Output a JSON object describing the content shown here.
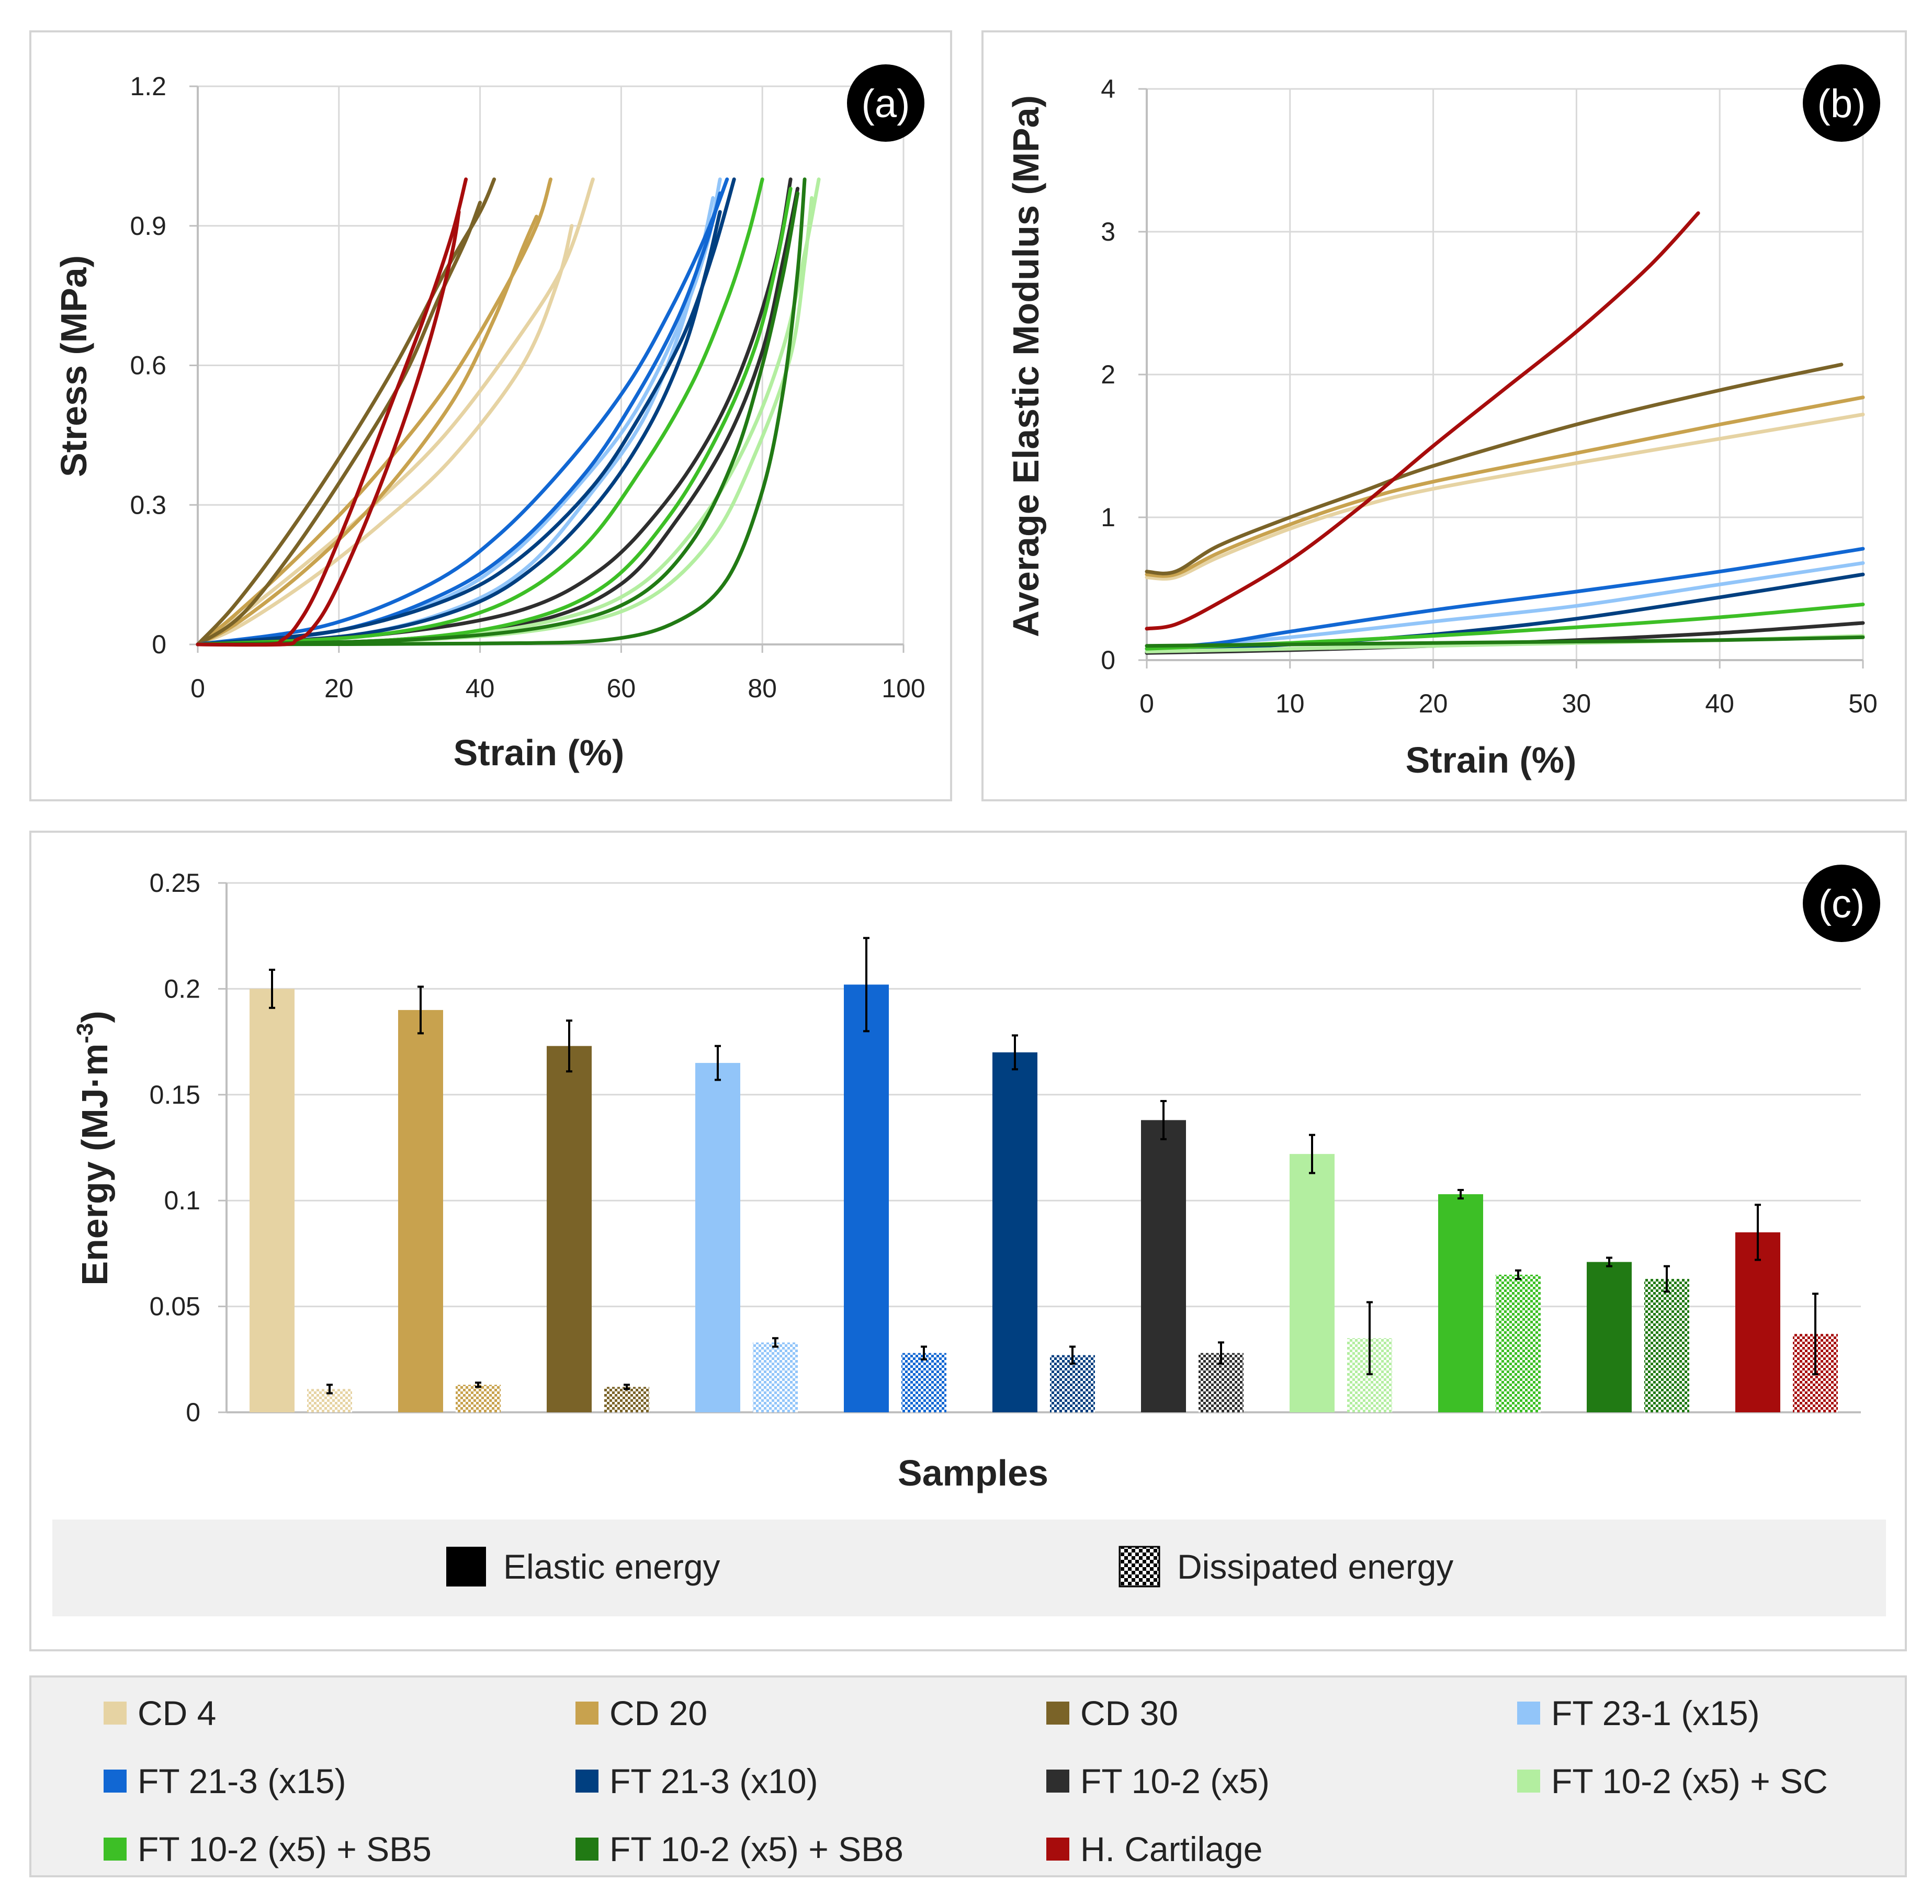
{
  "chart_data": [
    {
      "panel": "a",
      "panel_label": "(a)",
      "type": "line",
      "xlabel": "Strain (%)",
      "ylabel": "Stress (MPa)",
      "xlim": [
        0,
        100
      ],
      "ylim": [
        0,
        1.2
      ],
      "xticks": [
        "0",
        "20",
        "40",
        "60",
        "80",
        "100"
      ],
      "yticks": [
        "0",
        "0.3",
        "0.6",
        "0.9",
        "1.2"
      ],
      "grid": true,
      "series": [
        {
          "name": "CD 4",
          "color": "#e6d3a3",
          "curves": [
            {
              "x": [
                0,
                5,
                15,
                25,
                35,
                45,
                52,
                56
              ],
              "y": [
                0,
                0.05,
                0.17,
                0.3,
                0.45,
                0.65,
                0.82,
                1.0
              ]
            },
            {
              "x": [
                0,
                6,
                16,
                26,
                36,
                46,
                51,
                53
              ],
              "y": [
                0,
                0.04,
                0.14,
                0.26,
                0.4,
                0.6,
                0.78,
                0.9
              ]
            }
          ]
        },
        {
          "name": "CD 20",
          "color": "#c8a24e",
          "curves": [
            {
              "x": [
                0,
                5,
                15,
                25,
                35,
                43,
                48,
                50
              ],
              "y": [
                0,
                0.06,
                0.2,
                0.36,
                0.55,
                0.75,
                0.9,
                1.0
              ]
            },
            {
              "x": [
                0,
                6,
                16,
                26,
                36,
                42,
                46,
                48
              ],
              "y": [
                0,
                0.05,
                0.17,
                0.32,
                0.52,
                0.7,
                0.85,
                0.92
              ]
            }
          ]
        },
        {
          "name": "CD 30",
          "color": "#7a6328",
          "curves": [
            {
              "x": [
                0,
                5,
                12,
                20,
                28,
                35,
                40,
                42
              ],
              "y": [
                0,
                0.08,
                0.22,
                0.4,
                0.6,
                0.8,
                0.93,
                1.0
              ]
            },
            {
              "x": [
                0,
                6,
                13,
                21,
                29,
                34,
                38,
                40
              ],
              "y": [
                0,
                0.06,
                0.19,
                0.37,
                0.57,
                0.74,
                0.87,
                0.95
              ]
            }
          ]
        },
        {
          "name": "FT 23-1 (x15)",
          "color": "#92c5f9",
          "curves": [
            {
              "x": [
                0,
                20,
                35,
                45,
                55,
                62,
                68,
                72,
                74
              ],
              "y": [
                0,
                0.03,
                0.1,
                0.2,
                0.36,
                0.5,
                0.68,
                0.85,
                1.0
              ]
            },
            {
              "x": [
                0,
                22,
                37,
                47,
                56,
                63,
                68,
                71,
                73
              ],
              "y": [
                0,
                0.02,
                0.08,
                0.17,
                0.33,
                0.48,
                0.66,
                0.82,
                0.96
              ]
            }
          ]
        },
        {
          "name": "FT 21-3 (x15)",
          "color": "#1167d3",
          "curves": [
            {
              "x": [
                0,
                18,
                33,
                43,
                53,
                61,
                67,
                72,
                75
              ],
              "y": [
                0,
                0.04,
                0.13,
                0.24,
                0.4,
                0.56,
                0.72,
                0.88,
                1.0
              ]
            },
            {
              "x": [
                0,
                20,
                35,
                45,
                55,
                62,
                68,
                72,
                74
              ],
              "y": [
                0,
                0.03,
                0.11,
                0.21,
                0.37,
                0.53,
                0.7,
                0.86,
                0.97
              ]
            }
          ]
        },
        {
          "name": "FT 21-3 (x10)",
          "color": "#003f80",
          "curves": [
            {
              "x": [
                0,
                20,
                36,
                46,
                56,
                63,
                69,
                73,
                76
              ],
              "y": [
                0,
                0.03,
                0.1,
                0.19,
                0.34,
                0.5,
                0.67,
                0.84,
                1.0
              ]
            },
            {
              "x": [
                0,
                22,
                38,
                48,
                57,
                64,
                69,
                72,
                74
              ],
              "y": [
                0,
                0.02,
                0.08,
                0.17,
                0.31,
                0.47,
                0.64,
                0.8,
                0.93
              ]
            }
          ]
        },
        {
          "name": "FT 10-2 (x5)",
          "color": "#2e2e2e",
          "curves": [
            {
              "x": [
                0,
                25,
                45,
                57,
                66,
                73,
                78,
                82,
                84
              ],
              "y": [
                0,
                0.02,
                0.07,
                0.16,
                0.3,
                0.46,
                0.63,
                0.83,
                1.0
              ]
            },
            {
              "x": [
                0,
                28,
                48,
                60,
                68,
                75,
                80,
                83,
                85
              ],
              "y": [
                0,
                0.01,
                0.05,
                0.13,
                0.27,
                0.44,
                0.63,
                0.83,
                0.98
              ]
            }
          ]
        },
        {
          "name": "FT 10-2 (x5) + SC",
          "color": "#b3eea0",
          "curves": [
            {
              "x": [
                0,
                30,
                50,
                62,
                71,
                78,
                83,
                86,
                88
              ],
              "y": [
                0,
                0.01,
                0.05,
                0.12,
                0.26,
                0.44,
                0.64,
                0.84,
                1.0
              ]
            },
            {
              "x": [
                0,
                32,
                52,
                64,
                73,
                79,
                84,
                86,
                87
              ],
              "y": [
                0,
                0.01,
                0.04,
                0.1,
                0.23,
                0.41,
                0.62,
                0.82,
                0.96
              ]
            }
          ]
        },
        {
          "name": "FT 10-2 (x5) + SB5",
          "color": "#3dbf26",
          "curves": [
            {
              "x": [
                0,
                25,
                42,
                54,
                63,
                70,
                75,
                78,
                80
              ],
              "y": [
                0,
                0.02,
                0.08,
                0.2,
                0.38,
                0.56,
                0.74,
                0.88,
                1.0
              ]
            },
            {
              "x": [
                0,
                28,
                46,
                58,
                67,
                74,
                79,
                82,
                84
              ],
              "y": [
                0,
                0.01,
                0.05,
                0.13,
                0.28,
                0.46,
                0.64,
                0.82,
                0.98
              ]
            }
          ]
        },
        {
          "name": "FT 10-2 (x5) + SB8",
          "color": "#217a14",
          "curves": [
            {
              "x": [
                0,
                40,
                58,
                68,
                75,
                80,
                83,
                85,
                86
              ],
              "y": [
                0,
                0.002,
                0.01,
                0.05,
                0.14,
                0.33,
                0.55,
                0.8,
                1.0
              ]
            },
            {
              "x": [
                0,
                30,
                50,
                62,
                70,
                76,
                80,
                83,
                85
              ],
              "y": [
                0,
                0.01,
                0.04,
                0.1,
                0.22,
                0.4,
                0.6,
                0.8,
                0.97
              ]
            }
          ]
        },
        {
          "name": "H. Cartilage",
          "color": "#a70c0c",
          "curves": [
            {
              "x": [
                0,
                10,
                12,
                14,
                17,
                22,
                27,
                32,
                36,
                38
              ],
              "y": [
                0,
                0,
                0.01,
                0.04,
                0.12,
                0.3,
                0.5,
                0.7,
                0.88,
                1.0
              ]
            },
            {
              "x": [
                0,
                12,
                14,
                16,
                19,
                24,
                29,
                33,
                36,
                37
              ],
              "y": [
                0,
                0,
                0.01,
                0.03,
                0.1,
                0.27,
                0.47,
                0.66,
                0.84,
                0.93
              ]
            }
          ]
        }
      ]
    },
    {
      "panel": "b",
      "panel_label": "(b)",
      "type": "line",
      "xlabel": "Strain (%)",
      "ylabel": "Average Elastic Modulus (MPa)",
      "xlim": [
        0,
        50
      ],
      "ylim": [
        0,
        4
      ],
      "xticks": [
        "0",
        "10",
        "20",
        "30",
        "40",
        "50"
      ],
      "yticks": [
        "0",
        "1",
        "2",
        "3",
        "4"
      ],
      "grid": true,
      "series": [
        {
          "name": "CD 4",
          "color": "#e6d3a3",
          "x": [
            0,
            2,
            5,
            10,
            15,
            20,
            30,
            40,
            50
          ],
          "y": [
            0.58,
            0.58,
            0.72,
            0.92,
            1.08,
            1.2,
            1.38,
            1.55,
            1.72
          ]
        },
        {
          "name": "CD 20",
          "color": "#c8a24e",
          "x": [
            0,
            2,
            5,
            10,
            15,
            20,
            30,
            40,
            50
          ],
          "y": [
            0.6,
            0.6,
            0.75,
            0.95,
            1.12,
            1.25,
            1.45,
            1.65,
            1.84
          ]
        },
        {
          "name": "CD 30",
          "color": "#7a6328",
          "x": [
            0,
            2,
            5,
            10,
            15,
            20,
            30,
            40,
            48.5
          ],
          "y": [
            0.62,
            0.62,
            0.8,
            1.0,
            1.18,
            1.36,
            1.65,
            1.89,
            2.07
          ]
        },
        {
          "name": "FT 23-1 (x15)",
          "color": "#92c5f9",
          "x": [
            0,
            10,
            20,
            30,
            40,
            50
          ],
          "y": [
            0.08,
            0.16,
            0.27,
            0.38,
            0.53,
            0.68
          ]
        },
        {
          "name": "FT 21-3 (x15)",
          "color": "#1167d3",
          "x": [
            0,
            5,
            10,
            20,
            30,
            40,
            50
          ],
          "y": [
            0.08,
            0.12,
            0.2,
            0.35,
            0.48,
            0.62,
            0.78
          ]
        },
        {
          "name": "FT 21-3 (x10)",
          "color": "#003f80",
          "x": [
            0,
            10,
            20,
            30,
            40,
            50
          ],
          "y": [
            0.06,
            0.11,
            0.18,
            0.29,
            0.44,
            0.6
          ]
        },
        {
          "name": "FT 10-2 (x5)",
          "color": "#2e2e2e",
          "x": [
            0,
            10,
            20,
            30,
            40,
            50
          ],
          "y": [
            0.05,
            0.07,
            0.1,
            0.14,
            0.19,
            0.26
          ]
        },
        {
          "name": "FT 10-2 (x5) + SC",
          "color": "#b3eea0",
          "x": [
            0,
            10,
            20,
            30,
            40,
            50
          ],
          "y": [
            0.06,
            0.08,
            0.1,
            0.12,
            0.14,
            0.17
          ]
        },
        {
          "name": "FT 10-2 (x5) + SB5",
          "color": "#3dbf26",
          "x": [
            0,
            10,
            20,
            30,
            40,
            50
          ],
          "y": [
            0.08,
            0.12,
            0.17,
            0.23,
            0.3,
            0.39
          ]
        },
        {
          "name": "FT 10-2 (x5) + SB8",
          "color": "#217a14",
          "x": [
            0,
            10,
            20,
            30,
            40,
            50
          ],
          "y": [
            0.1,
            0.11,
            0.12,
            0.13,
            0.14,
            0.16
          ]
        },
        {
          "name": "H. Cartilage",
          "color": "#a70c0c",
          "x": [
            0,
            2,
            5,
            10,
            15,
            20,
            25,
            30,
            35,
            38.5
          ],
          "y": [
            0.22,
            0.25,
            0.4,
            0.7,
            1.08,
            1.5,
            1.9,
            2.3,
            2.75,
            3.13
          ]
        }
      ]
    },
    {
      "panel": "c",
      "panel_label": "(c)",
      "type": "bar",
      "xlabel": "Samples",
      "ylabel": "Energy (MJ·m",
      "ylabel_sup": "-3",
      "ylabel_end": ")",
      "ylim": [
        0,
        0.25
      ],
      "yticks": [
        "0",
        "0.05",
        "0.1",
        "0.15",
        "0.2",
        "0.25"
      ],
      "grid": true,
      "categories": [
        "CD 4",
        "CD 20",
        "CD 30",
        "FT 23-1 (x15)",
        "FT 21-3 (x15)",
        "FT 21-3 (x10)",
        "FT 10-2 (x5)",
        "FT 10-2 (x5) + SC",
        "FT 10-2 (x5) + SB5",
        "FT 10-2 (x5) + SB8",
        "H. Cartilage"
      ],
      "colors": [
        "#e6d3a3",
        "#c8a24e",
        "#7a6328",
        "#92c5f9",
        "#1167d3",
        "#003f80",
        "#2e2e2e",
        "#b3eea0",
        "#3dbf26",
        "#217a14",
        "#a70c0c"
      ],
      "series": [
        {
          "name": "Elastic energy",
          "values": [
            0.2,
            0.19,
            0.173,
            0.165,
            0.202,
            0.17,
            0.138,
            0.122,
            0.103,
            0.071,
            0.085
          ],
          "errors": [
            0.009,
            0.011,
            0.012,
            0.008,
            0.022,
            0.008,
            0.009,
            0.009,
            0.002,
            0.002,
            0.013
          ]
        },
        {
          "name": "Dissipated energy",
          "values": [
            0.011,
            0.013,
            0.012,
            0.033,
            0.028,
            0.027,
            0.028,
            0.035,
            0.065,
            0.063,
            0.037
          ],
          "errors": [
            0.002,
            0.001,
            0.001,
            0.002,
            0.003,
            0.004,
            0.005,
            0.017,
            0.002,
            0.006,
            0.019
          ]
        }
      ],
      "legend": [
        "Elastic energy",
        "Dissipated energy"
      ]
    }
  ],
  "legend": {
    "items": [
      "CD 4",
      "CD 20",
      "CD 30",
      "FT 23-1 (x15)",
      "FT 21-3 (x15)",
      "FT 21-3 (x10)",
      "FT 10-2 (x5)",
      "FT 10-2 (x5) + SC",
      "FT 10-2 (x5) + SB5",
      "FT 10-2 (x5) + SB8",
      "H. Cartilage"
    ],
    "colors": [
      "#e6d3a3",
      "#c8a24e",
      "#7a6328",
      "#92c5f9",
      "#1167d3",
      "#003f80",
      "#2e2e2e",
      "#b3eea0",
      "#3dbf26",
      "#217a14",
      "#a70c0c"
    ]
  }
}
